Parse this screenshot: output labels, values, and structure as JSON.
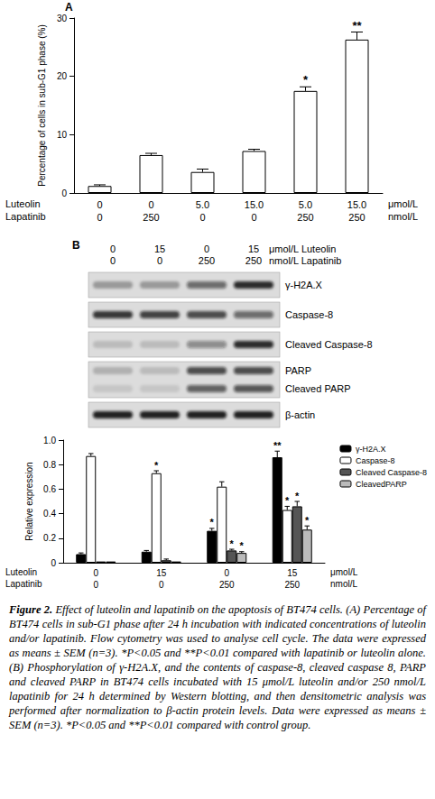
{
  "chart_data": [
    {
      "type": "bar",
      "panel_label": "A",
      "ylabel": "Percentage of cells in sub-G1 phase (%)",
      "categories": [
        "0\n0",
        "0\n250",
        "5.0\n0",
        "15.0\n0",
        "5.0\n250",
        "15.0\n250"
      ],
      "x_rows": [
        {
          "label": "Luteolin",
          "unit": "μmol/L"
        },
        {
          "label": "Lapatinib",
          "unit": "nmol/L"
        }
      ],
      "values": [
        1.2,
        6.5,
        3.6,
        7.2,
        17.5,
        26.3
      ],
      "errors": [
        0.2,
        0.3,
        0.5,
        0.3,
        0.7,
        1.3
      ],
      "significance": [
        null,
        null,
        null,
        null,
        "*",
        "**"
      ],
      "color": "#ffffff",
      "ylim": [
        0,
        30
      ],
      "yticks": [
        0,
        10,
        20,
        30
      ],
      "grid": false
    },
    {
      "type": "bar",
      "ylabel": "Relative expression",
      "categories": [
        "0\n0",
        "15\n0",
        "0\n250",
        "15\n250"
      ],
      "x_rows": [
        {
          "label": "Luteolin",
          "unit": "μmol/L"
        },
        {
          "label": "Lapatinib",
          "unit": "nmol/L"
        }
      ],
      "series": [
        {
          "name": "γ-H2A.X",
          "color": "#000000",
          "values": [
            0.07,
            0.09,
            0.26,
            0.86
          ],
          "errors": [
            0.01,
            0.01,
            0.02,
            0.05
          ],
          "significance": [
            null,
            null,
            "*",
            "**"
          ]
        },
        {
          "name": "Caspase-8",
          "color": "#ffffff",
          "values": [
            0.87,
            0.73,
            0.62,
            0.43
          ],
          "errors": [
            0.02,
            0.02,
            0.04,
            0.03
          ],
          "significance": [
            null,
            "*",
            null,
            "*"
          ]
        },
        {
          "name": "Cleaved Caspase-8",
          "color": "#555555",
          "values": [
            0.01,
            0.02,
            0.1,
            0.46
          ],
          "errors": [
            0,
            0.01,
            0.01,
            0.04
          ],
          "significance": [
            null,
            null,
            "*",
            "*"
          ]
        },
        {
          "name": "CleavedPARP",
          "color": "#bbbbbb",
          "values": [
            0.01,
            0.01,
            0.08,
            0.27
          ],
          "errors": [
            0,
            0,
            0.01,
            0.03
          ],
          "significance": [
            null,
            null,
            "*",
            "*"
          ]
        }
      ],
      "ylim": [
        0,
        1
      ],
      "yticks": [
        0,
        0.2,
        0.4,
        0.6,
        0.8,
        {
          "value": 1,
          "label": "1.0"
        }
      ],
      "legend": "upper right",
      "grid": false
    }
  ],
  "blot": {
    "panel_label": "B",
    "lane_rows": [
      {
        "values": [
          "0",
          "15",
          "0",
          "15"
        ],
        "label": "μmol/L Luteolin"
      },
      {
        "values": [
          "0",
          "0",
          "250",
          "250"
        ],
        "label": "nmol/L Lapatinib"
      }
    ],
    "panels": [
      {
        "labels": [
          "γ-H2A.X"
        ],
        "bands": [
          [
            0.3,
            0.3,
            0.55,
            0.85
          ]
        ]
      },
      {
        "labels": [
          "Caspase-8"
        ],
        "bands": [
          [
            0.8,
            0.75,
            0.7,
            0.55
          ]
        ]
      },
      {
        "labels": [
          "Cleaved Caspase-8"
        ],
        "bands": [
          [
            0.15,
            0.15,
            0.4,
            0.85
          ]
        ]
      },
      {
        "labels": [
          "PARP",
          "Cleaved PARP"
        ],
        "bands": [
          [
            0.2,
            0.15,
            0.7,
            0.7
          ],
          [
            0.1,
            0.1,
            0.6,
            0.65
          ]
        ]
      },
      {
        "labels": [
          "β-actin"
        ],
        "bands": [
          [
            0.9,
            0.9,
            0.9,
            0.9
          ]
        ]
      }
    ]
  },
  "caption": {
    "label": "Figure 2.",
    "text": "Effect of luteolin and lapatinib on the apoptosis of BT474 cells. (A) Percentage of BT474 cells in sub-G1 phase after 24 h incubation with indicated concentrations of luteolin and/or lapatinib. Flow cytometry was used to analyse cell cycle. The data were expressed as means ± SEM (n=3). *P<0.05 and **P<0.01 compared with lapatinib or luteolin alone. (B) Phosphorylation of γ-H2A.X, and the contents of caspase-8, cleaved caspase 8, PARP and cleaved PARP in BT474 cells incubated with 15 μmol/L luteolin and/or 250 nmol/L lapatinib for 24 h determined by Western blotting, and then densitometric analysis was performed after normalization to β-actin protein levels. Data were expressed as means ± SEM (n=3). *P<0.05 and **P<0.01 compared with control group."
  }
}
